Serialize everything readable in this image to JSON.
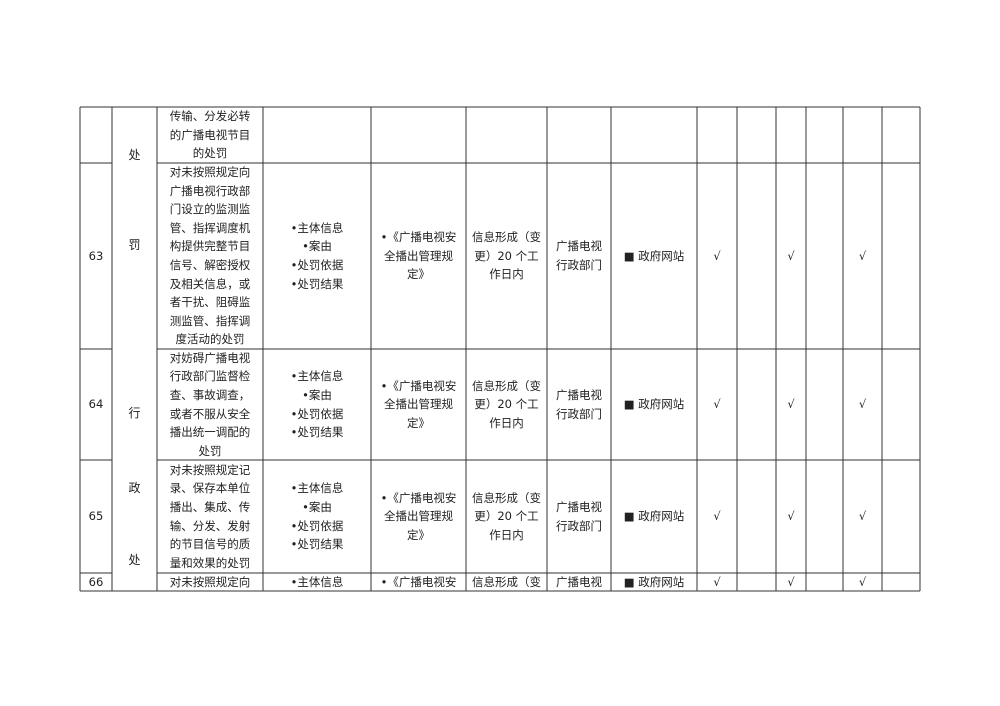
{
  "category_column": [
    "处",
    "罚",
    "行",
    "政",
    "处"
  ],
  "rows": [
    {
      "item": [
        "传输、分发必转",
        "的广播电视节目",
        "的处罚"
      ]
    },
    {
      "number": "63",
      "item": [
        "对未按照规定向",
        "广播电视行政部",
        "门设立的监测监",
        "管、指挥调度机",
        "构提供完整节目",
        "信号、解密授权",
        "及相关信息，或",
        "者干扰、阻碍监",
        "测监管、指挥调",
        "度活动的处罚"
      ],
      "content": [
        "•主体信息",
        "•案由",
        "•处罚依据",
        "•处罚结果"
      ],
      "basis": [
        "•《广播电视安",
        "全播出管理规",
        "定》"
      ],
      "time": [
        "信息形成（变",
        "更）20 个工",
        "作日内"
      ],
      "department": [
        "广播电视",
        "行政部门"
      ],
      "channel": "■  政府网站",
      "marks": [
        "√",
        null,
        "√",
        null,
        "√",
        null
      ]
    },
    {
      "number": "64",
      "item": [
        "对妨碍广播电视",
        "行政部门监督检",
        "查、事故调查，",
        "或者不服从安全",
        "播出统一调配的",
        "处罚"
      ],
      "content": [
        "•主体信息",
        "•案由",
        "•处罚依据",
        "•处罚结果"
      ],
      "basis": [
        "•《广播电视安",
        "全播出管理规",
        "定》"
      ],
      "time": [
        "信息形成（变",
        "更）20 个工",
        "作日内"
      ],
      "department": [
        "广播电视",
        "行政部门"
      ],
      "channel": "■  政府网站",
      "marks": [
        "√",
        null,
        "√",
        null,
        "√",
        null
      ]
    },
    {
      "number": "65",
      "item": [
        "对未按照规定记",
        "录、保存本单位",
        "播出、集成、传",
        "输、分发、发射",
        "的节目信号的质",
        "量和效果的处罚"
      ],
      "content": [
        "•主体信息",
        "•案由",
        "•处罚依据",
        "•处罚结果"
      ],
      "basis": [
        "•《广播电视安",
        "全播出管理规",
        "定》"
      ],
      "time": [
        "信息形成（变",
        "更）20 个工",
        "作日内"
      ],
      "department": [
        "广播电视",
        "行政部门"
      ],
      "channel": "■  政府网站",
      "marks": [
        "√",
        null,
        "√",
        null,
        "√",
        null
      ]
    },
    {
      "number": "66",
      "item": [
        "对未按照规定向"
      ],
      "content": [
        "•主体信息"
      ],
      "basis": [
        "•《广播电视安"
      ],
      "time": [
        "信息形成（变"
      ],
      "department": [
        "广播电视"
      ],
      "channel": "■  政府网站",
      "marks": [
        "√",
        null,
        "√",
        null,
        "√",
        null
      ]
    }
  ]
}
